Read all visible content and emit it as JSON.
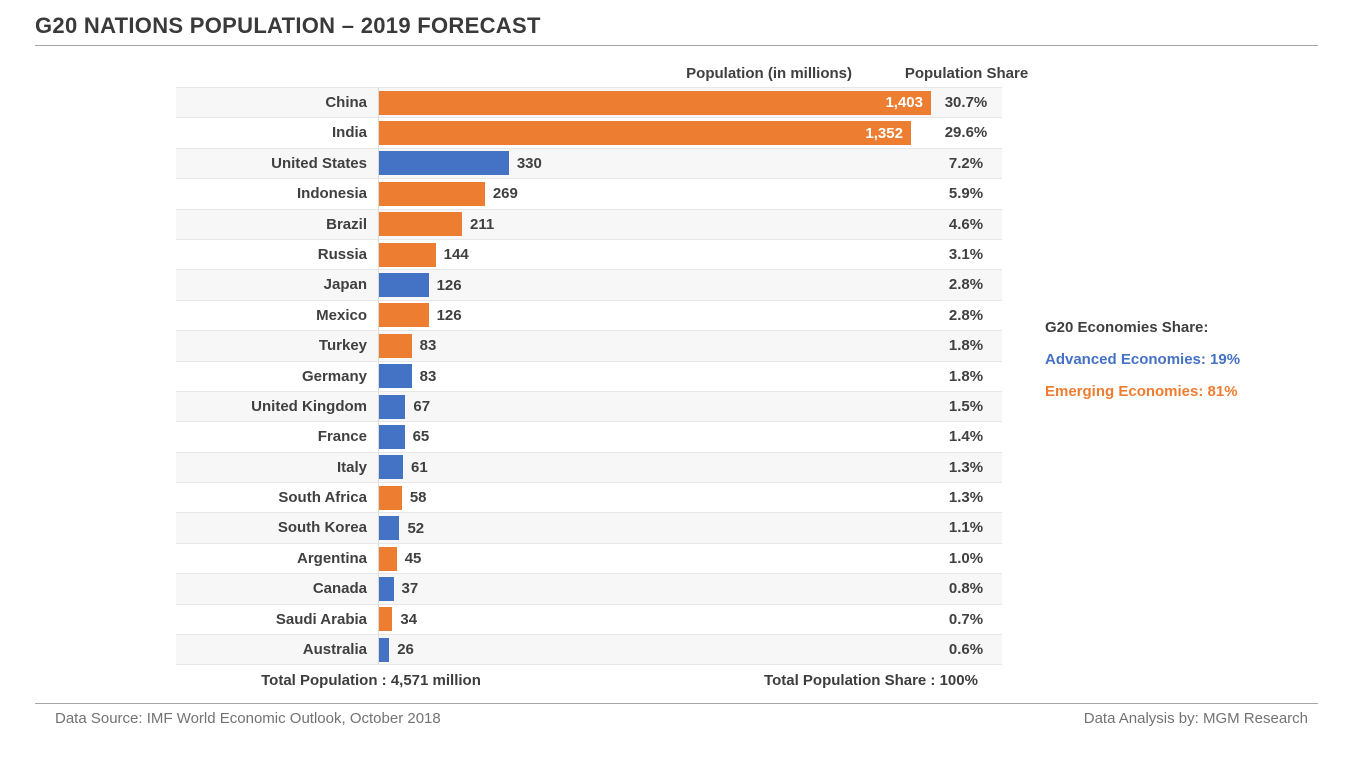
{
  "title": "G20 NATIONS POPULATION – 2019 FORECAST",
  "columns": {
    "population": "Population (in millions)",
    "share": "Population Share"
  },
  "colors": {
    "advanced": "#4472C4",
    "emerging": "#ED7D31",
    "band": "#f7f7f7",
    "text_dark": "#404040",
    "footer_gray": "#737373"
  },
  "rows": [
    {
      "country": "China",
      "population": 1403,
      "value_label": "1,403",
      "share": "30.7%",
      "economy": "emerging",
      "value_inside": true
    },
    {
      "country": "India",
      "population": 1352,
      "value_label": "1,352",
      "share": "29.6%",
      "economy": "emerging",
      "value_inside": true
    },
    {
      "country": "United States",
      "population": 330,
      "value_label": "330",
      "share": "7.2%",
      "economy": "advanced",
      "value_inside": false
    },
    {
      "country": "Indonesia",
      "population": 269,
      "value_label": "269",
      "share": "5.9%",
      "economy": "emerging",
      "value_inside": false
    },
    {
      "country": "Brazil",
      "population": 211,
      "value_label": "211",
      "share": "4.6%",
      "economy": "emerging",
      "value_inside": false
    },
    {
      "country": "Russia",
      "population": 144,
      "value_label": "144",
      "share": "3.1%",
      "economy": "emerging",
      "value_inside": false
    },
    {
      "country": "Japan",
      "population": 126,
      "value_label": "126",
      "share": "2.8%",
      "economy": "advanced",
      "value_inside": false
    },
    {
      "country": "Mexico",
      "population": 126,
      "value_label": "126",
      "share": "2.8%",
      "economy": "emerging",
      "value_inside": false
    },
    {
      "country": "Turkey",
      "population": 83,
      "value_label": "83",
      "share": "1.8%",
      "economy": "emerging",
      "value_inside": false
    },
    {
      "country": "Germany",
      "population": 83,
      "value_label": "83",
      "share": "1.8%",
      "economy": "advanced",
      "value_inside": false
    },
    {
      "country": "United Kingdom",
      "population": 67,
      "value_label": "67",
      "share": "1.5%",
      "economy": "advanced",
      "value_inside": false
    },
    {
      "country": "France",
      "population": 65,
      "value_label": "65",
      "share": "1.4%",
      "economy": "advanced",
      "value_inside": false
    },
    {
      "country": "Italy",
      "population": 61,
      "value_label": "61",
      "share": "1.3%",
      "economy": "advanced",
      "value_inside": false
    },
    {
      "country": "South Africa",
      "population": 58,
      "value_label": "58",
      "share": "1.3%",
      "economy": "emerging",
      "value_inside": false
    },
    {
      "country": "South Korea",
      "population": 52,
      "value_label": "52",
      "share": "1.1%",
      "economy": "advanced",
      "value_inside": false
    },
    {
      "country": "Argentina",
      "population": 45,
      "value_label": "45",
      "share": "1.0%",
      "economy": "emerging",
      "value_inside": false
    },
    {
      "country": "Canada",
      "population": 37,
      "value_label": "37",
      "share": "0.8%",
      "economy": "advanced",
      "value_inside": false
    },
    {
      "country": "Saudi Arabia",
      "population": 34,
      "value_label": "34",
      "share": "0.7%",
      "economy": "emerging",
      "value_inside": false
    },
    {
      "country": "Australia",
      "population": 26,
      "value_label": "26",
      "share": "0.6%",
      "economy": "advanced",
      "value_inside": false
    }
  ],
  "totals": {
    "population": "Total Population : 4,571 million",
    "share": "Total Population Share : 100%"
  },
  "legend": {
    "heading": "G20 Economies Share:",
    "advanced": "Advanced Economies: 19%",
    "emerging": "Emerging Economies: 81%"
  },
  "footer": {
    "source": "Data Source: IMF World Economic Outlook, October 2018",
    "analysis": "Data Analysis by: MGM Research"
  },
  "chart_data": {
    "type": "bar",
    "orientation": "horizontal",
    "title": "G20 NATIONS POPULATION – 2019 FORECAST",
    "categories": [
      "China",
      "India",
      "United States",
      "Indonesia",
      "Brazil",
      "Russia",
      "Japan",
      "Mexico",
      "Turkey",
      "Germany",
      "United Kingdom",
      "France",
      "Italy",
      "South Africa",
      "South Korea",
      "Argentina",
      "Canada",
      "Saudi Arabia",
      "Australia"
    ],
    "series": [
      {
        "name": "Population (in millions)",
        "values": [
          1403,
          1352,
          330,
          269,
          211,
          144,
          126,
          126,
          83,
          83,
          67,
          65,
          61,
          58,
          52,
          45,
          37,
          34,
          26
        ]
      },
      {
        "name": "Population Share (%)",
        "values": [
          30.7,
          29.6,
          7.2,
          5.9,
          4.6,
          3.1,
          2.8,
          2.8,
          1.8,
          1.8,
          1.5,
          1.4,
          1.3,
          1.3,
          1.1,
          1.0,
          0.8,
          0.7,
          0.6
        ]
      }
    ],
    "economy_type": [
      "emerging",
      "emerging",
      "advanced",
      "emerging",
      "emerging",
      "emerging",
      "advanced",
      "emerging",
      "emerging",
      "advanced",
      "advanced",
      "advanced",
      "advanced",
      "emerging",
      "advanced",
      "emerging",
      "advanced",
      "emerging",
      "advanced"
    ],
    "xlim": [
      0,
      1403
    ],
    "grid": false,
    "legend_position": "right",
    "bar_color_rule": "blue = advanced economy, orange = emerging economy",
    "totals": {
      "population_millions": 4571,
      "share_percent": 100
    }
  }
}
